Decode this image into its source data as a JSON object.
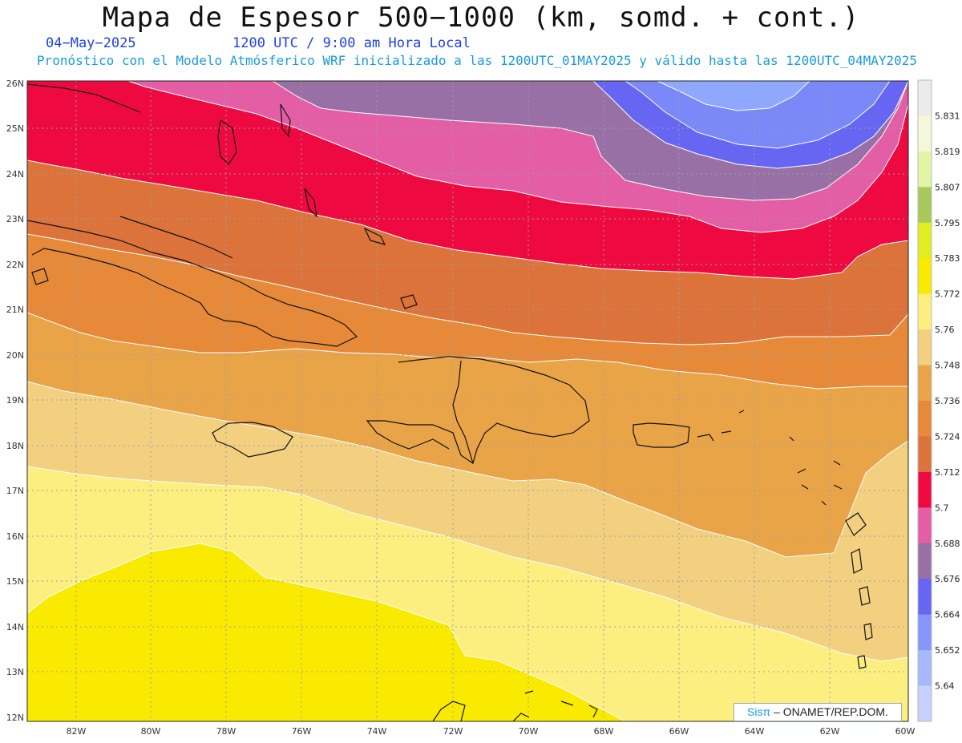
{
  "header": {
    "title": "Mapa de Espesor 500−1000 (km, somd. + cont.)",
    "date": "04−May−2025",
    "time": "1200 UTC / 9:00 am Hora Local",
    "forecast": "Pronóstico con el Modelo Atmósferico WRF inicializado a las 1200UTC_01MAY2025 y válido hasta las  1200UTC_04MAY2025"
  },
  "map": {
    "lat_ticks": [
      "26N",
      "25N",
      "24N",
      "23N",
      "22N",
      "21N",
      "20N",
      "19N",
      "18N",
      "17N",
      "16N",
      "15N",
      "14N",
      "13N",
      "12N"
    ],
    "lon_ticks": [
      "82W",
      "80W",
      "78W",
      "76W",
      "74W",
      "72W",
      "70W",
      "68W",
      "66W",
      "64W",
      "62W",
      "60W"
    ]
  },
  "colorbar": {
    "labels": [
      "5.831",
      "5.819",
      "5.807",
      "5.795",
      "5.783",
      "5.772",
      "5.76",
      "5.748",
      "5.736",
      "5.724",
      "5.712",
      "5.7",
      "5.688",
      "5.676",
      "5.664",
      "5.652",
      "5.64"
    ],
    "colors": [
      "#ebebeb",
      "#f4f7d8",
      "#e2f5a6",
      "#a7c95c",
      "#e0ee1f",
      "#faea00",
      "#fdee80",
      "#f2d080",
      "#eaa448",
      "#e68a3a",
      "#dc733a",
      "#ee0a40",
      "#e35ea4",
      "#9870a6",
      "#6666f2",
      "#8796fb",
      "#a8b8fc",
      "#c8d0fc"
    ]
  },
  "credit": {
    "brand": "Sisπ",
    "text": "– ONAMET/REP.DOM."
  }
}
